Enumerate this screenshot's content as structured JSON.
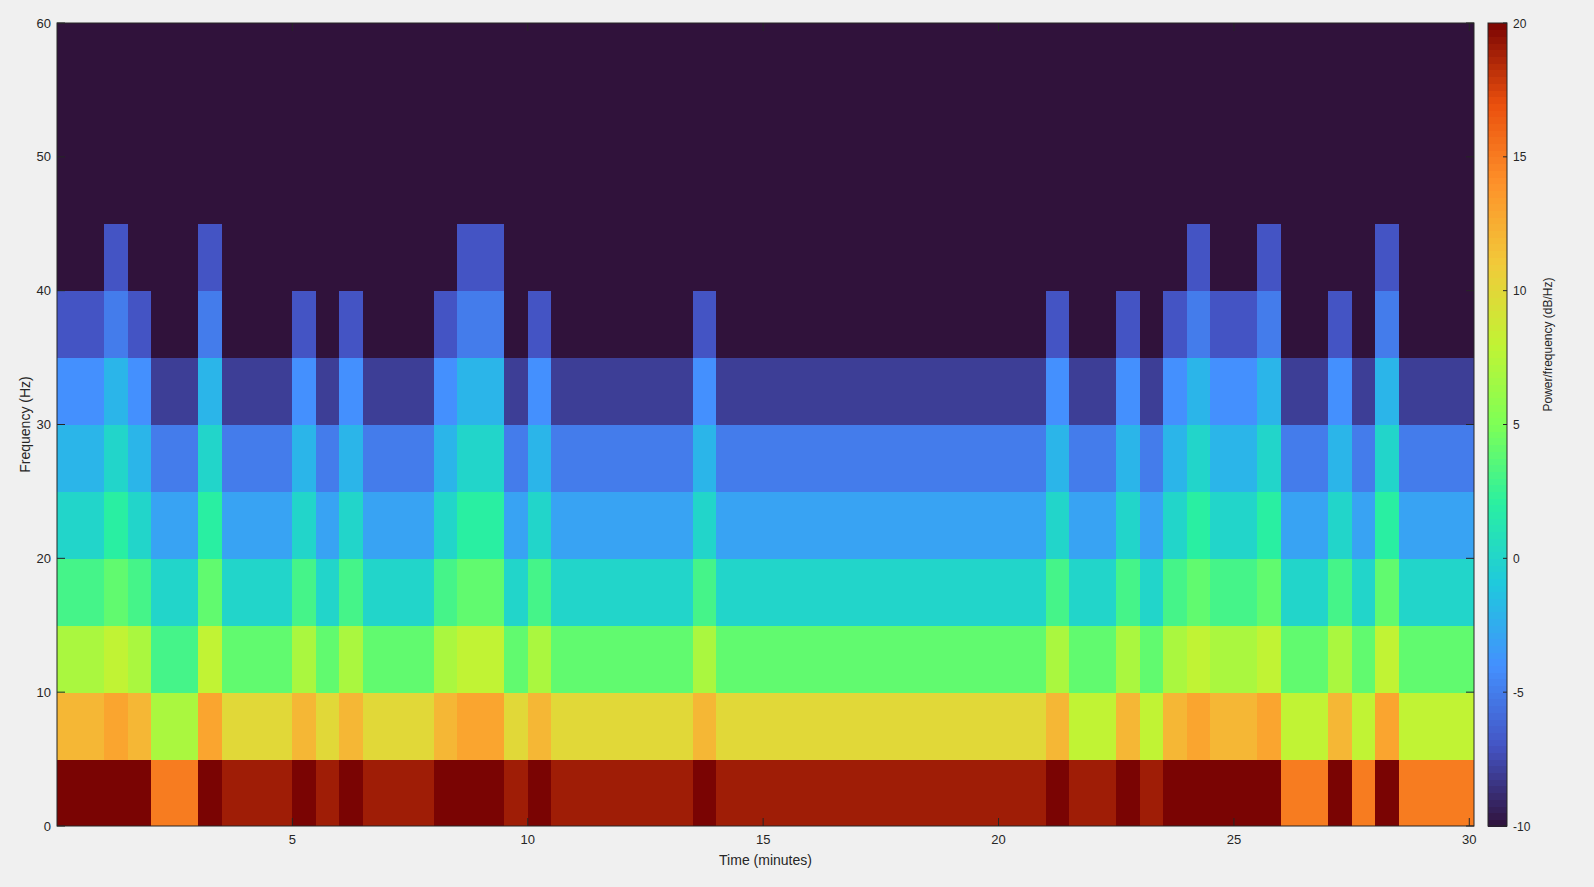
{
  "chart_data": {
    "type": "heatmap",
    "xlabel": "Time (minutes)",
    "ylabel": "Frequency (Hz)",
    "xlim": [
      0,
      30.1
    ],
    "ylim": [
      0,
      60
    ],
    "xticks": [
      5,
      10,
      15,
      20,
      25,
      30
    ],
    "yticks": [
      0,
      10,
      20,
      30,
      40,
      50,
      60
    ],
    "x_edges": [
      0,
      0.5,
      1,
      1.5,
      2,
      2.5,
      3,
      3.5,
      4,
      4.5,
      5,
      5.5,
      6,
      6.5,
      7,
      7.5,
      8,
      8.5,
      9,
      9.5,
      10,
      10.5,
      11,
      11.5,
      12,
      12.5,
      13,
      13.5,
      14,
      14.5,
      15,
      15.5,
      16,
      16.5,
      17,
      17.5,
      18,
      18.5,
      19,
      19.5,
      20,
      20.5,
      21,
      21.5,
      22,
      22.5,
      23,
      23.5,
      24,
      24.5,
      25,
      25.5,
      26,
      26.5,
      27,
      27.5,
      28,
      28.5,
      29,
      29.5,
      30.1
    ],
    "y_edges": [
      0,
      5,
      10,
      15,
      20,
      25,
      30,
      35,
      40,
      45,
      50,
      55,
      60
    ],
    "cells": [
      [
        20,
        20,
        20,
        20,
        15,
        15,
        20,
        19,
        19,
        19,
        20,
        19,
        20,
        19,
        19,
        19,
        20,
        20,
        20,
        19,
        20,
        19,
        19,
        19,
        19,
        19,
        19,
        20,
        19,
        19,
        19,
        19,
        19,
        19,
        19,
        19,
        19,
        19,
        19,
        19,
        19,
        19,
        20,
        19,
        19,
        20,
        19,
        20,
        20,
        20,
        20,
        20,
        15,
        15,
        20,
        15,
        20,
        15,
        15,
        15
      ],
      [
        12,
        12,
        13,
        12,
        7,
        7,
        13,
        10,
        10,
        10,
        12,
        10,
        12,
        10,
        10,
        10,
        12,
        13,
        13,
        10,
        12,
        10,
        10,
        10,
        10,
        10,
        10,
        12,
        10,
        10,
        10,
        10,
        10,
        10,
        10,
        10,
        10,
        10,
        10,
        10,
        10,
        10,
        12,
        8,
        8,
        12,
        8,
        12,
        13,
        12,
        12,
        13,
        8,
        8,
        12,
        8,
        13,
        8,
        8,
        8
      ],
      [
        7,
        7,
        8,
        7,
        3,
        3,
        8,
        4,
        4,
        4,
        7,
        4,
        7,
        4,
        4,
        4,
        7,
        8,
        8,
        4,
        7,
        4,
        4,
        4,
        4,
        4,
        4,
        7,
        4,
        4,
        4,
        4,
        4,
        4,
        4,
        4,
        4,
        4,
        4,
        4,
        4,
        4,
        7,
        4,
        4,
        7,
        4,
        7,
        8,
        7,
        7,
        8,
        4,
        4,
        7,
        4,
        8,
        4,
        4,
        4
      ],
      [
        3,
        3,
        4,
        3,
        0,
        0,
        4,
        0,
        0,
        0,
        3,
        0,
        3,
        0,
        0,
        0,
        3,
        4,
        4,
        0,
        3,
        0,
        0,
        0,
        0,
        0,
        0,
        3,
        0,
        0,
        0,
        0,
        0,
        0,
        0,
        0,
        0,
        0,
        0,
        0,
        0,
        0,
        3,
        0,
        0,
        3,
        0,
        3,
        4,
        3,
        3,
        4,
        0,
        0,
        3,
        0,
        4,
        0,
        0,
        0
      ],
      [
        0,
        0,
        2,
        0,
        -3,
        -3,
        2,
        -3,
        -3,
        -3,
        0,
        -3,
        0,
        -3,
        -3,
        -3,
        0,
        2,
        2,
        -3,
        0,
        -3,
        -3,
        -3,
        -3,
        -3,
        -3,
        0,
        -3,
        -3,
        -3,
        -3,
        -3,
        -3,
        -3,
        -3,
        -3,
        -3,
        -3,
        -3,
        -3,
        -3,
        0,
        -3,
        -3,
        0,
        -3,
        0,
        2,
        0,
        0,
        2,
        -3,
        -3,
        0,
        -3,
        2,
        -3,
        -3,
        -3
      ],
      [
        -2,
        -2,
        0,
        -2,
        -5,
        -5,
        0,
        -5,
        -5,
        -5,
        -2,
        -5,
        -2,
        -5,
        -5,
        -5,
        -2,
        0,
        0,
        -5,
        -2,
        -5,
        -5,
        -5,
        -5,
        -5,
        -5,
        -2,
        -5,
        -5,
        -5,
        -5,
        -5,
        -5,
        -5,
        -5,
        -5,
        -5,
        -5,
        -5,
        -5,
        -5,
        -2,
        -5,
        -5,
        -2,
        -5,
        -2,
        0,
        -2,
        -2,
        0,
        -5,
        -5,
        -2,
        -5,
        0,
        -5,
        -5,
        -5
      ],
      [
        -4,
        -4,
        -2,
        -4,
        -8,
        -8,
        -2,
        -8,
        -8,
        -8,
        -4,
        -8,
        -4,
        -8,
        -8,
        -8,
        -4,
        -2,
        -2,
        -8,
        -4,
        -8,
        -8,
        -8,
        -8,
        -8,
        -8,
        -4,
        -8,
        -8,
        -8,
        -8,
        -8,
        -8,
        -8,
        -8,
        -8,
        -8,
        -8,
        -8,
        -8,
        -8,
        -4,
        -8,
        -8,
        -4,
        -8,
        -4,
        -2,
        -4,
        -4,
        -2,
        -8,
        -8,
        -4,
        -8,
        -2,
        -8,
        -8,
        -8
      ],
      [
        -7,
        -7,
        -5,
        -7,
        -10,
        -10,
        -5,
        -10,
        -10,
        -10,
        -7,
        -10,
        -7,
        -10,
        -10,
        -10,
        -7,
        -5,
        -5,
        -10,
        -7,
        -10,
        -10,
        -10,
        -10,
        -10,
        -10,
        -7,
        -10,
        -10,
        -10,
        -10,
        -10,
        -10,
        -10,
        -10,
        -10,
        -10,
        -10,
        -10,
        -10,
        -10,
        -7,
        -10,
        -10,
        -7,
        -10,
        -7,
        -5,
        -7,
        -7,
        -5,
        -10,
        -10,
        -7,
        -10,
        -5,
        -10,
        -10,
        -10
      ],
      [
        -10,
        -10,
        -7,
        -10,
        -10,
        -10,
        -7,
        -10,
        -10,
        -10,
        -10,
        -10,
        -10,
        -10,
        -10,
        -10,
        -10,
        -7,
        -7,
        -10,
        -10,
        -10,
        -10,
        -10,
        -10,
        -10,
        -10,
        -10,
        -10,
        -10,
        -10,
        -10,
        -10,
        -10,
        -10,
        -10,
        -10,
        -10,
        -10,
        -10,
        -10,
        -10,
        -10,
        -10,
        -10,
        -10,
        -10,
        -10,
        -7,
        -10,
        -10,
        -7,
        -10,
        -10,
        -10,
        -10,
        -7,
        -10,
        -10,
        -10
      ],
      [
        -10,
        -10,
        -10,
        -10,
        -10,
        -10,
        -10,
        -10,
        -10,
        -10,
        -10,
        -10,
        -10,
        -10,
        -10,
        -10,
        -10,
        -10,
        -10,
        -10,
        -10,
        -10,
        -10,
        -10,
        -10,
        -10,
        -10,
        -10,
        -10,
        -10,
        -10,
        -10,
        -10,
        -10,
        -10,
        -10,
        -10,
        -10,
        -10,
        -10,
        -10,
        -10,
        -10,
        -10,
        -10,
        -10,
        -10,
        -10,
        -10,
        -10,
        -10,
        -10,
        -10,
        -10,
        -10,
        -10,
        -10,
        -10,
        -10,
        -10
      ],
      [
        -10,
        -10,
        -10,
        -10,
        -10,
        -10,
        -10,
        -10,
        -10,
        -10,
        -10,
        -10,
        -10,
        -10,
        -10,
        -10,
        -10,
        -10,
        -10,
        -10,
        -10,
        -10,
        -10,
        -10,
        -10,
        -10,
        -10,
        -10,
        -10,
        -10,
        -10,
        -10,
        -10,
        -10,
        -10,
        -10,
        -10,
        -10,
        -10,
        -10,
        -10,
        -10,
        -10,
        -10,
        -10,
        -10,
        -10,
        -10,
        -10,
        -10,
        -10,
        -10,
        -10,
        -10,
        -10,
        -10,
        -10,
        -10,
        -10,
        -10
      ],
      [
        -10,
        -10,
        -10,
        -10,
        -10,
        -10,
        -10,
        -10,
        -10,
        -10,
        -10,
        -10,
        -10,
        -10,
        -10,
        -10,
        -10,
        -10,
        -10,
        -10,
        -10,
        -10,
        -10,
        -10,
        -10,
        -10,
        -10,
        -10,
        -10,
        -10,
        -10,
        -10,
        -10,
        -10,
        -10,
        -10,
        -10,
        -10,
        -10,
        -10,
        -10,
        -10,
        -10,
        -10,
        -10,
        -10,
        -10,
        -10,
        -10,
        -10,
        -10,
        -10,
        -10,
        -10,
        -10,
        -10,
        -10,
        -10,
        -10,
        -10
      ]
    ],
    "colorbar": {
      "label": "Power/frequency (dB/Hz)",
      "lim": [
        -10,
        20
      ],
      "ticks": [
        -10,
        -5,
        0,
        5,
        10,
        15,
        20
      ]
    }
  }
}
